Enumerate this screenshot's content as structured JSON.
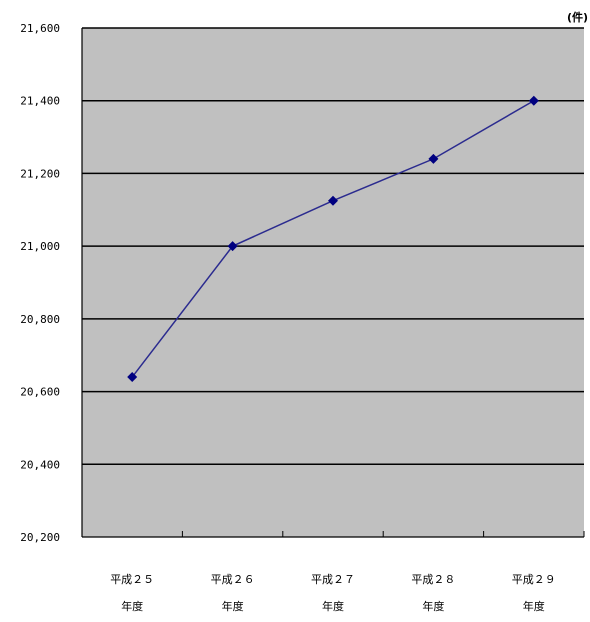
{
  "chart_data": {
    "type": "line",
    "title": "",
    "unit_label": "(件)",
    "xlabel": "",
    "ylabel": "",
    "categories": [
      [
        "平成２５",
        "年度"
      ],
      [
        "平成２６",
        "年度"
      ],
      [
        "平成２７",
        "年度"
      ],
      [
        "平成２８",
        "年度"
      ],
      [
        "平成２９",
        "年度"
      ]
    ],
    "series": [
      {
        "values": [
          20640,
          21000,
          21125,
          21240,
          21400
        ]
      }
    ],
    "ylim": [
      20200,
      21600
    ],
    "y_ticks": [
      20200,
      20400,
      20600,
      20800,
      21000,
      21200,
      21400,
      21600
    ],
    "y_tick_labels": [
      "20,200",
      "20,400",
      "20,600",
      "20,800",
      "21,000",
      "21,200",
      "21,400",
      "21,600"
    ],
    "grid": true,
    "colors": {
      "plot_background": "#c0c0c0",
      "line": "#2b2b8f",
      "marker": "#000080",
      "gridline": "#000000"
    },
    "marker": "diamond"
  }
}
